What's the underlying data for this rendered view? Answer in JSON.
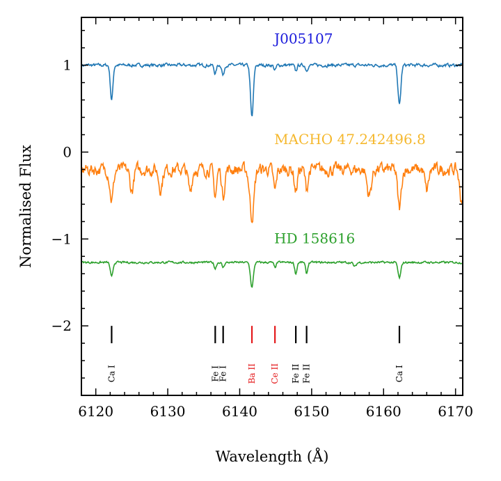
{
  "chart_data": {
    "type": "line",
    "title": "",
    "xlabel": "Wavelength (Å)",
    "ylabel": "Normalised Flux",
    "xlim": [
      6118,
      6171
    ],
    "ylim": [
      -2.8,
      1.55
    ],
    "xticks": [
      6120,
      6130,
      6140,
      6150,
      6160,
      6170
    ],
    "xtick_labels": [
      "6120",
      "6130",
      "6140",
      "6150",
      "6160",
      "6170"
    ],
    "yticks": [
      1,
      0,
      -1,
      -2
    ],
    "ytick_labels": [
      "1",
      "0",
      "−1",
      "−2"
    ],
    "series": [
      {
        "name": "J005107",
        "color": "#1f77b4",
        "label_color": "#1a1adb",
        "label_pos": [
          6144.8,
          1.25
        ],
        "baseline": 1.0,
        "noise": 0.018,
        "lines": [
          {
            "x": 6122.2,
            "depth": 0.4,
            "width": 0.18
          },
          {
            "x": 6136.6,
            "depth": 0.1,
            "width": 0.15
          },
          {
            "x": 6137.7,
            "depth": 0.12,
            "width": 0.15
          },
          {
            "x": 6141.7,
            "depth": 0.6,
            "width": 0.2
          },
          {
            "x": 6144.9,
            "depth": 0.06,
            "width": 0.15
          },
          {
            "x": 6147.8,
            "depth": 0.07,
            "width": 0.15
          },
          {
            "x": 6149.3,
            "depth": 0.06,
            "width": 0.15
          },
          {
            "x": 6162.2,
            "depth": 0.46,
            "width": 0.2
          }
        ]
      },
      {
        "name": "MACHO 47.242496.8",
        "color": "#ff7f0e",
        "label_color": "#f5b82e",
        "label_pos": [
          6144.8,
          0.09
        ],
        "baseline": -0.2,
        "noise": 0.07,
        "lines": [
          {
            "x": 6122.2,
            "depth": 0.35,
            "width": 0.25
          },
          {
            "x": 6125.0,
            "depth": 0.25,
            "width": 0.25
          },
          {
            "x": 6129.0,
            "depth": 0.22,
            "width": 0.25
          },
          {
            "x": 6133.1,
            "depth": 0.25,
            "width": 0.25
          },
          {
            "x": 6136.6,
            "depth": 0.3,
            "width": 0.2
          },
          {
            "x": 6137.7,
            "depth": 0.3,
            "width": 0.2
          },
          {
            "x": 6141.7,
            "depth": 0.55,
            "width": 0.3
          },
          {
            "x": 6144.9,
            "depth": 0.25,
            "width": 0.2
          },
          {
            "x": 6147.8,
            "depth": 0.25,
            "width": 0.2
          },
          {
            "x": 6149.3,
            "depth": 0.22,
            "width": 0.2
          },
          {
            "x": 6158.0,
            "depth": 0.3,
            "width": 0.3
          },
          {
            "x": 6162.2,
            "depth": 0.45,
            "width": 0.25
          },
          {
            "x": 6166.0,
            "depth": 0.25,
            "width": 0.25
          },
          {
            "x": 6170.8,
            "depth": 0.35,
            "width": 0.25
          }
        ]
      },
      {
        "name": "HD 158616",
        "color": "#2ca02c",
        "label_color": "#2ca02c",
        "label_pos": [
          6144.8,
          -1.05
        ],
        "baseline": -1.27,
        "noise": 0.012,
        "lines": [
          {
            "x": 6122.2,
            "depth": 0.17,
            "width": 0.18
          },
          {
            "x": 6136.6,
            "depth": 0.07,
            "width": 0.15
          },
          {
            "x": 6137.7,
            "depth": 0.06,
            "width": 0.15
          },
          {
            "x": 6141.7,
            "depth": 0.29,
            "width": 0.2
          },
          {
            "x": 6144.9,
            "depth": 0.06,
            "width": 0.15
          },
          {
            "x": 6147.8,
            "depth": 0.13,
            "width": 0.15
          },
          {
            "x": 6149.3,
            "depth": 0.13,
            "width": 0.15
          },
          {
            "x": 6156.0,
            "depth": 0.05,
            "width": 0.2
          },
          {
            "x": 6162.2,
            "depth": 0.18,
            "width": 0.2
          }
        ]
      }
    ],
    "line_ids": [
      {
        "x": 6122.2,
        "labels": [
          "Ca I"
        ],
        "color": "#000000"
      },
      {
        "x": 6136.6,
        "labels": [
          "Fe I"
        ],
        "color": "#000000"
      },
      {
        "x": 6137.7,
        "labels": [
          "Fe I"
        ],
        "color": "#000000"
      },
      {
        "x": 6141.7,
        "labels": [
          "Ba II"
        ],
        "color": "#e41a1c"
      },
      {
        "x": 6144.9,
        "labels": [
          "Ce II"
        ],
        "color": "#e41a1c"
      },
      {
        "x": 6147.8,
        "labels": [
          "Fe II"
        ],
        "color": "#000000"
      },
      {
        "x": 6149.3,
        "labels": [
          "Fe II"
        ],
        "color": "#000000"
      },
      {
        "x": 6162.2,
        "labels": [
          "Ca I"
        ],
        "color": "#000000"
      }
    ],
    "line_id_marker_y": [
      -2.0,
      -2.2
    ],
    "line_id_label_y": -2.55
  }
}
